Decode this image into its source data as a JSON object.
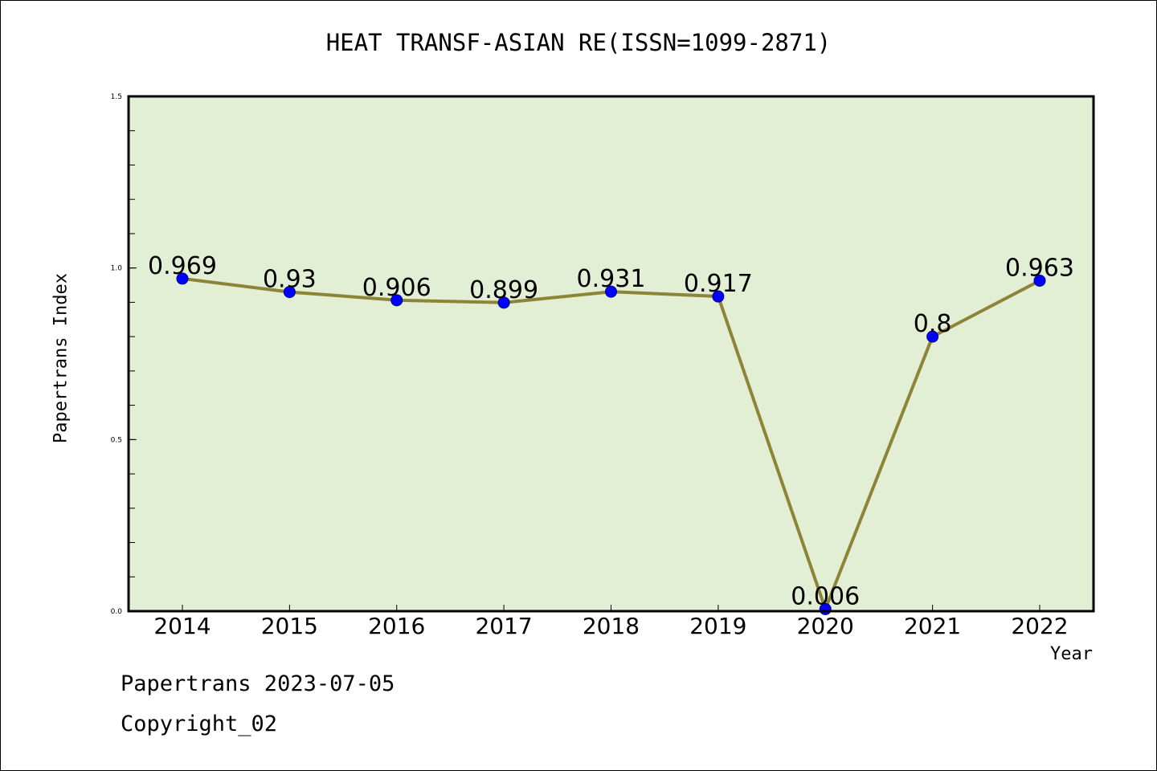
{
  "chart_data": {
    "type": "line",
    "title": "HEAT TRANSF-ASIAN RE(ISSN=1099-2871)",
    "xlabel": "Year",
    "ylabel": "Papertrans Index",
    "categories": [
      "2014",
      "2015",
      "2016",
      "2017",
      "2018",
      "2019",
      "2020",
      "2021",
      "2022"
    ],
    "series": [
      {
        "values": [
          0.969,
          0.93,
          0.906,
          0.899,
          0.931,
          0.917,
          0.006,
          0.8,
          0.963
        ]
      }
    ],
    "data_labels": [
      "0.969",
      "0.93",
      "0.906",
      "0.899",
      "0.931",
      "0.917",
      "0.006",
      "0.8",
      "0.963"
    ],
    "ylim": [
      0,
      1.5
    ],
    "yticks": [
      "0.0",
      "0.5",
      "1.0",
      "1.5"
    ],
    "grid": false,
    "colors": {
      "plot_bg": "#e2efd4",
      "line": "#8c8537",
      "marker": "#0000ff"
    }
  },
  "footer": {
    "line1": "Papertrans 2023-07-05",
    "line2": "Copyright_02"
  }
}
